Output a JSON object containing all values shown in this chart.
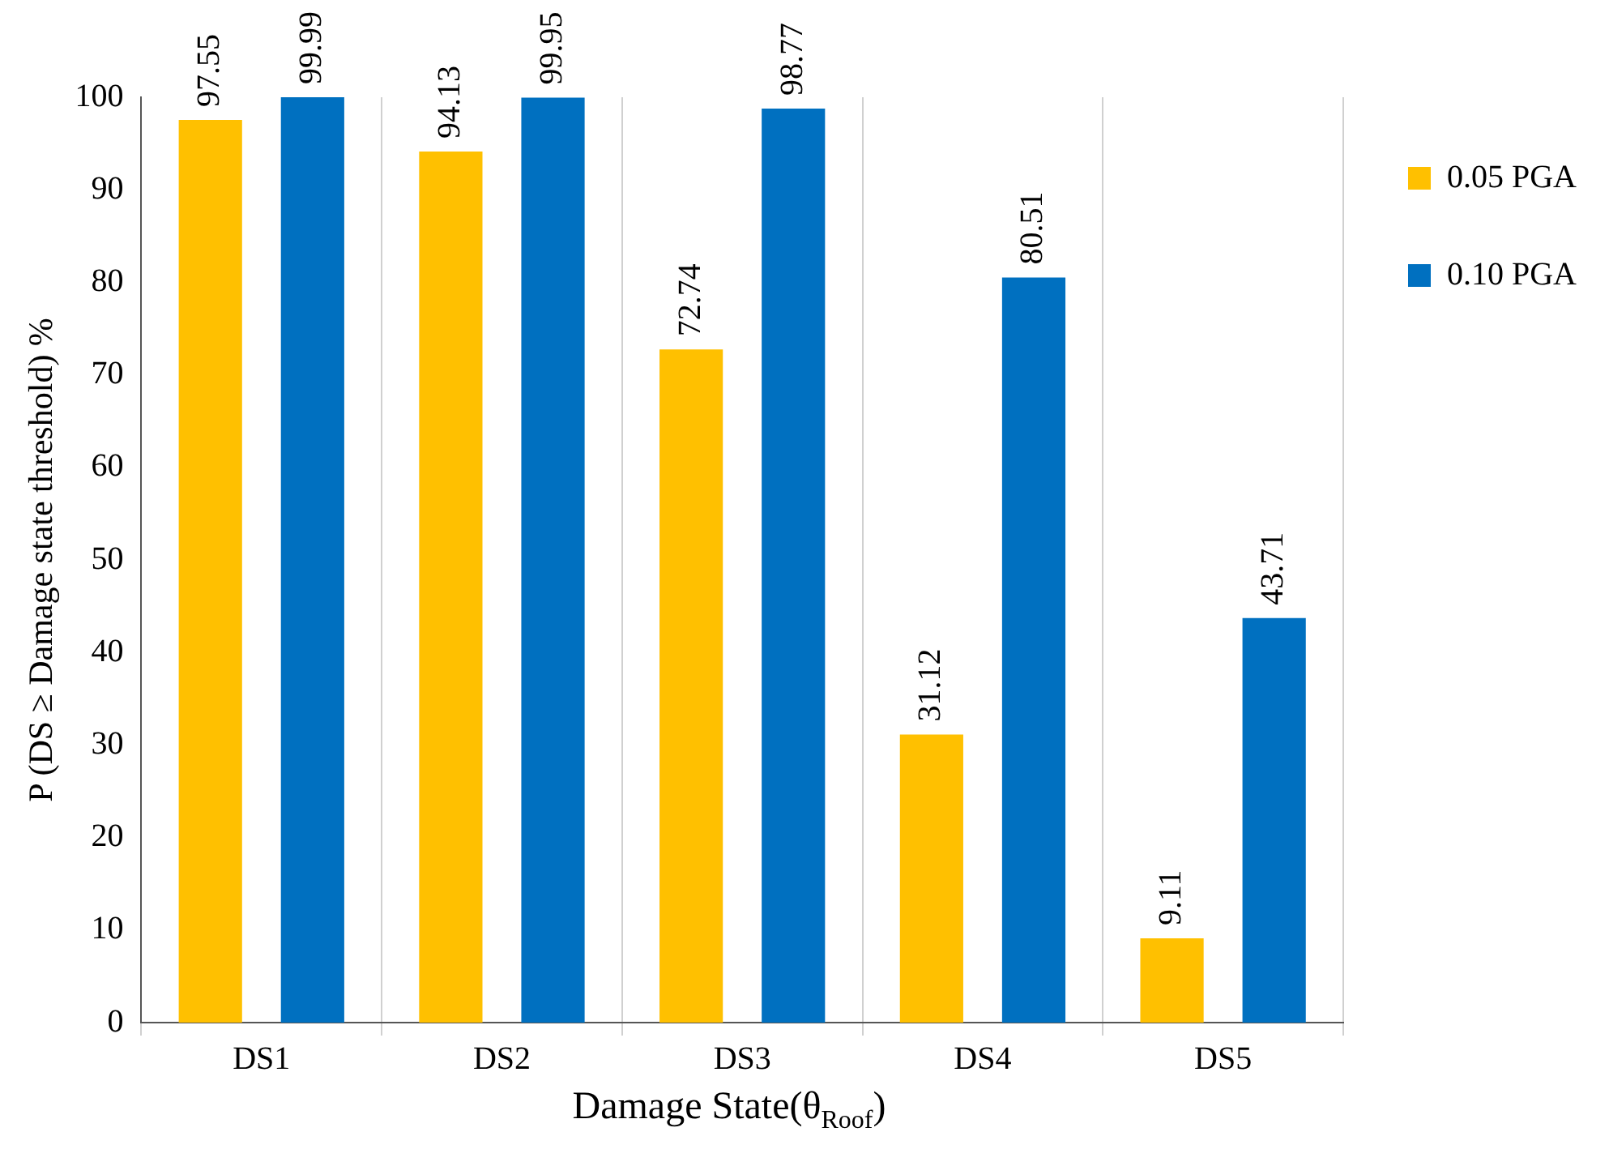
{
  "chart_data": {
    "type": "bar",
    "xlabel": "Damage State(θ$_{Roof}$)",
    "ylabel": "P (DS ≥ Damage state threshold) %",
    "categories": [
      "DS1",
      "DS2",
      "DS3",
      "DS4",
      "DS5"
    ],
    "series": [
      {
        "name": "0.05 PGA",
        "color": "#ffc000",
        "values": [
          97.55,
          94.13,
          72.74,
          31.12,
          9.11
        ]
      },
      {
        "name": "0.10 PGA",
        "color": "#0070c0",
        "values": [
          99.99,
          99.95,
          98.77,
          80.51,
          43.71
        ]
      }
    ],
    "ylim": [
      0,
      100
    ],
    "yticks": [
      0,
      10,
      20,
      30,
      40,
      50,
      60,
      70,
      80,
      90,
      100
    ],
    "grid": "x",
    "legend": "top right",
    "data_labels": true
  }
}
